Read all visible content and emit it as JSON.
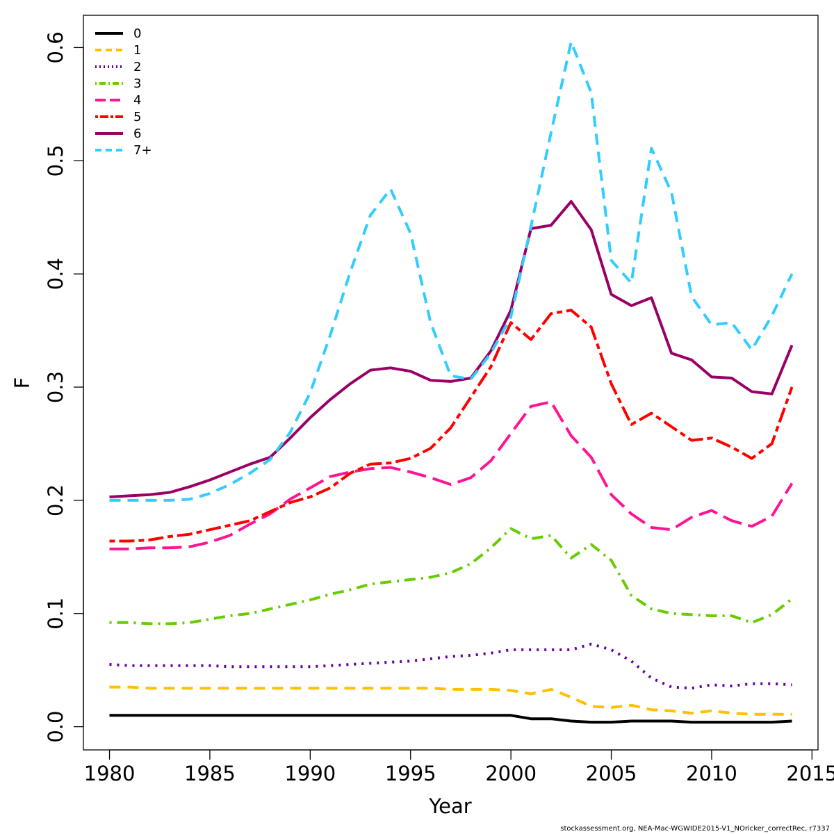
{
  "footer": "stockassessment.org, NEA-Mac-WGWIDE2015-V1_NOricker_correctRec, r7337",
  "chart_data": {
    "type": "line",
    "title": "",
    "xlabel": "Year",
    "ylabel": "F",
    "xlim": [
      1978.7,
      2015.3
    ],
    "ylim": [
      -0.0205,
      0.6285
    ],
    "x_ticks": [
      1980,
      1985,
      1990,
      1995,
      2000,
      2005,
      2010,
      2015
    ],
    "y_ticks": [
      0.0,
      0.1,
      0.2,
      0.3,
      0.4,
      0.5,
      0.6
    ],
    "y_tick_labels": [
      "0.0",
      "0.1",
      "0.2",
      "0.3",
      "0.4",
      "0.5",
      "0.6"
    ],
    "grid": false,
    "legend_position": "top-left",
    "x": [
      1980,
      1981,
      1982,
      1983,
      1984,
      1985,
      1986,
      1987,
      1988,
      1989,
      1990,
      1991,
      1992,
      1993,
      1994,
      1995,
      1996,
      1997,
      1998,
      1999,
      2000,
      2001,
      2002,
      2003,
      2004,
      2005,
      2006,
      2007,
      2008,
      2009,
      2010,
      2011,
      2012,
      2013,
      2014
    ],
    "series": [
      {
        "name": "0",
        "color": "#000000",
        "dash": "solid",
        "values": [
          0.01,
          0.01,
          0.01,
          0.01,
          0.01,
          0.01,
          0.01,
          0.01,
          0.01,
          0.01,
          0.01,
          0.01,
          0.01,
          0.01,
          0.01,
          0.01,
          0.01,
          0.01,
          0.01,
          0.01,
          0.01,
          0.007,
          0.007,
          0.005,
          0.004,
          0.004,
          0.005,
          0.005,
          0.005,
          0.004,
          0.004,
          0.004,
          0.004,
          0.004,
          0.005
        ]
      },
      {
        "name": "1",
        "color": "#FFC000",
        "dash": "dashed",
        "values": [
          0.035,
          0.035,
          0.034,
          0.034,
          0.034,
          0.034,
          0.034,
          0.034,
          0.034,
          0.034,
          0.034,
          0.034,
          0.034,
          0.034,
          0.034,
          0.034,
          0.034,
          0.033,
          0.033,
          0.033,
          0.032,
          0.029,
          0.033,
          0.026,
          0.018,
          0.017,
          0.019,
          0.015,
          0.014,
          0.012,
          0.014,
          0.012,
          0.011,
          0.011,
          0.011
        ]
      },
      {
        "name": "2",
        "color": "#660099",
        "dash": "dotted",
        "values": [
          0.055,
          0.054,
          0.054,
          0.054,
          0.054,
          0.054,
          0.053,
          0.053,
          0.053,
          0.053,
          0.053,
          0.054,
          0.055,
          0.056,
          0.057,
          0.058,
          0.06,
          0.062,
          0.063,
          0.065,
          0.068,
          0.068,
          0.068,
          0.068,
          0.073,
          0.068,
          0.058,
          0.043,
          0.035,
          0.034,
          0.037,
          0.036,
          0.038,
          0.038,
          0.037
        ]
      },
      {
        "name": "3",
        "color": "#66CC00",
        "dash": "dotdash",
        "values": [
          0.092,
          0.092,
          0.091,
          0.091,
          0.092,
          0.095,
          0.098,
          0.1,
          0.104,
          0.108,
          0.112,
          0.117,
          0.121,
          0.126,
          0.128,
          0.13,
          0.132,
          0.136,
          0.144,
          0.158,
          0.175,
          0.166,
          0.169,
          0.149,
          0.161,
          0.147,
          0.116,
          0.104,
          0.1,
          0.099,
          0.098,
          0.098,
          0.092,
          0.099,
          0.113
        ]
      },
      {
        "name": "4",
        "color": "#FF1493",
        "dash": "longdash",
        "values": [
          0.157,
          0.157,
          0.158,
          0.158,
          0.159,
          0.163,
          0.169,
          0.179,
          0.188,
          0.201,
          0.211,
          0.221,
          0.225,
          0.228,
          0.229,
          0.225,
          0.22,
          0.214,
          0.22,
          0.235,
          0.259,
          0.283,
          0.287,
          0.257,
          0.238,
          0.205,
          0.188,
          0.176,
          0.174,
          0.185,
          0.191,
          0.182,
          0.177,
          0.186,
          0.215
        ]
      },
      {
        "name": "5",
        "color": "#FF0000",
        "dash": "twodash",
        "values": [
          0.164,
          0.164,
          0.165,
          0.168,
          0.17,
          0.174,
          0.178,
          0.182,
          0.19,
          0.198,
          0.203,
          0.211,
          0.224,
          0.232,
          0.233,
          0.237,
          0.246,
          0.264,
          0.291,
          0.318,
          0.357,
          0.342,
          0.365,
          0.368,
          0.353,
          0.303,
          0.267,
          0.277,
          0.265,
          0.253,
          0.255,
          0.247,
          0.237,
          0.25,
          0.3
        ]
      },
      {
        "name": "6",
        "color": "#990066",
        "dash": "solid",
        "values": [
          0.203,
          0.204,
          0.205,
          0.207,
          0.212,
          0.218,
          0.225,
          0.232,
          0.238,
          0.255,
          0.273,
          0.289,
          0.303,
          0.315,
          0.317,
          0.314,
          0.306,
          0.305,
          0.308,
          0.332,
          0.368,
          0.44,
          0.443,
          0.464,
          0.439,
          0.382,
          0.372,
          0.379,
          0.33,
          0.324,
          0.309,
          0.308,
          0.296,
          0.294,
          0.337
        ]
      },
      {
        "name": "7+",
        "color": "#33CCFF",
        "dash": "dashed",
        "values": [
          0.2,
          0.2,
          0.2,
          0.2,
          0.201,
          0.206,
          0.214,
          0.224,
          0.236,
          0.26,
          0.295,
          0.346,
          0.402,
          0.452,
          0.475,
          0.436,
          0.357,
          0.31,
          0.307,
          0.33,
          0.362,
          0.442,
          0.525,
          0.605,
          0.56,
          0.412,
          0.392,
          0.511,
          0.472,
          0.38,
          0.355,
          0.357,
          0.333,
          0.363,
          0.4
        ]
      }
    ]
  }
}
